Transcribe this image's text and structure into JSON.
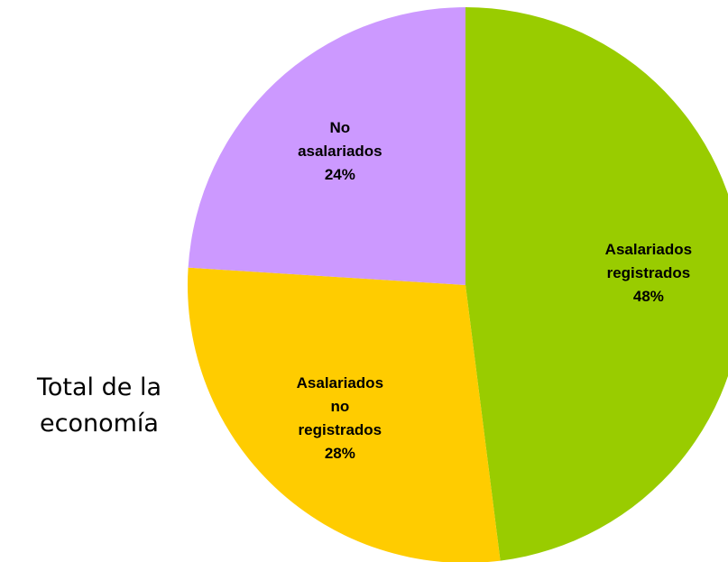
{
  "chart_data": {
    "type": "pie",
    "categories": [
      "Asalariados registrados",
      "Asalariados no registrados",
      "No asalariados"
    ],
    "values": [
      48,
      28,
      24
    ],
    "value_labels": [
      "48%",
      "28%",
      "24%"
    ],
    "colors": [
      "#99cc00",
      "#ffcc00",
      "#cc99ff"
    ],
    "annotation": "Total de la economía"
  }
}
